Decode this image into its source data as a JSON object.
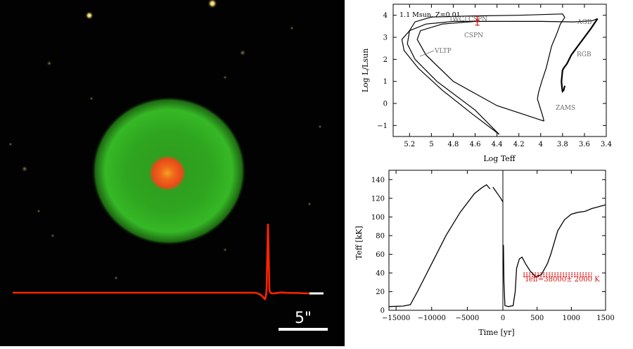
{
  "nebula_panel": {
    "scale_bar_label": "5\"",
    "colors": {
      "shell": "#37b824",
      "core": "#f0581e",
      "profile": "#ff2400",
      "profile_tail": "#ffffff"
    }
  },
  "chart_data": [
    {
      "type": "line",
      "panel": "hr-diagram",
      "title": "1.1 Msun, Z=0.01",
      "xlabel": "Log Teff",
      "ylabel": "Log L/Lsun",
      "xlim": [
        5.35,
        3.4
      ],
      "ylim": [
        -1.5,
        4.5
      ],
      "x_reversed": true,
      "x_ticks": [
        "5.2",
        "5",
        "4.8",
        "4.6",
        "4.4",
        "4.2",
        "4",
        "3.8",
        "3.6",
        "3.4"
      ],
      "y_ticks": [
        "-1",
        "0",
        "1",
        "2",
        "3",
        "4"
      ],
      "annotations": [
        "[WC] CSPN",
        "CSPN",
        "VLTP",
        "AGB",
        "RGB",
        "ZAMS"
      ],
      "error_point": {
        "x": 4.58,
        "y": 3.75,
        "xerr": 0.02,
        "yerr": 0.2,
        "color": "#dd1111"
      },
      "series": [
        {
          "points": [
            [
              3.78,
              0.8
            ],
            [
              3.79,
              0.6
            ],
            [
              3.8,
              0.55
            ],
            [
              3.805,
              0.7
            ],
            [
              3.81,
              1.0
            ],
            [
              3.8,
              1.5
            ],
            [
              3.79,
              1.6
            ],
            [
              3.76,
              1.8
            ],
            [
              3.72,
              2.2
            ],
            [
              3.66,
              2.6
            ],
            [
              3.6,
              3.0
            ],
            [
              3.54,
              3.4
            ],
            [
              3.5,
              3.7
            ],
            [
              3.48,
              3.85
            ]
          ]
        },
        {
          "points": [
            [
              3.48,
              3.85
            ],
            [
              3.53,
              3.75
            ],
            [
              3.7,
              3.7
            ],
            [
              4.0,
              3.72
            ],
            [
              4.4,
              3.72
            ],
            [
              4.8,
              3.72
            ],
            [
              5.05,
              3.6
            ],
            [
              5.2,
              3.3
            ],
            [
              5.27,
              2.9
            ],
            [
              5.25,
              2.4
            ],
            [
              5.12,
              1.6
            ],
            [
              4.9,
              0.6
            ],
            [
              4.62,
              -0.5
            ],
            [
              4.38,
              -1.4
            ]
          ]
        },
        {
          "points": [
            [
              4.38,
              -1.4
            ],
            [
              4.6,
              -0.3
            ],
            [
              4.95,
              1.0
            ],
            [
              5.15,
              2.0
            ],
            [
              5.22,
              2.7
            ],
            [
              5.2,
              3.3
            ],
            [
              5.15,
              3.7
            ],
            [
              5.0,
              3.92
            ],
            [
              4.6,
              3.97
            ],
            [
              4.2,
              4.0
            ],
            [
              3.8,
              4.06
            ],
            [
              3.78,
              3.9
            ],
            [
              3.82,
              3.6
            ],
            [
              3.85,
              3.2
            ],
            [
              3.9,
              2.6
            ],
            [
              3.93,
              2.0
            ],
            [
              3.95,
              1.6
            ],
            [
              3.97,
              1.3
            ],
            [
              3.99,
              1.0
            ],
            [
              4.02,
              0.5
            ],
            [
              4.03,
              0.2
            ],
            [
              3.98,
              -0.6
            ],
            [
              3.97,
              -0.8
            ]
          ]
        },
        {
          "points": [
            [
              3.97,
              -0.8
            ],
            [
              4.4,
              -0.1
            ],
            [
              4.8,
              1.0
            ],
            [
              5.05,
              2.2
            ],
            [
              5.13,
              2.9
            ],
            [
              5.1,
              3.3
            ],
            [
              4.9,
              3.6
            ],
            [
              4.6,
              3.72
            ]
          ]
        }
      ]
    },
    {
      "type": "line",
      "panel": "teff-time",
      "xlabel": "Time [yr]",
      "ylabel": "Teff [kK]",
      "ylim": [
        0,
        150
      ],
      "x_ticks": [
        "−15000",
        "−10000",
        "−5000",
        "0",
        "500",
        "1000",
        "1500"
      ],
      "y_ticks": [
        "0",
        "20",
        "40",
        "60",
        "80",
        "100",
        "120",
        "140"
      ],
      "annotation": "Teff=38000± 2000 K",
      "band": {
        "x": [
          300,
          1300
        ],
        "y": [
          36,
          40
        ],
        "color": "#dd1111"
      },
      "series": [
        {
          "segment": "before",
          "points": [
            [
              -16000,
              4
            ],
            [
              -14000,
              4.5
            ],
            [
              -13000,
              6
            ],
            [
              -12000,
              20
            ],
            [
              -10000,
              50
            ],
            [
              -8000,
              80
            ],
            [
              -6000,
              105
            ],
            [
              -4000,
              125
            ],
            [
              -3000,
              131
            ],
            [
              -2300,
              134.5
            ],
            [
              -1800,
              130
            ]
          ]
        },
        {
          "segment": "after",
          "points": [
            [
              -1400,
              132
            ],
            [
              -300,
              120
            ],
            [
              0,
              116
            ],
            [
              8,
              70
            ],
            [
              15,
              30
            ],
            [
              30,
              5
            ],
            [
              80,
              4
            ],
            [
              150,
              5
            ],
            [
              180,
              20
            ],
            [
              200,
              45
            ],
            [
              240,
              55
            ],
            [
              280,
              57
            ],
            [
              330,
              50
            ],
            [
              400,
              42
            ],
            [
              480,
              36
            ],
            [
              560,
              38
            ],
            [
              650,
              50
            ],
            [
              700,
              60
            ],
            [
              800,
              85
            ],
            [
              900,
              97
            ],
            [
              1000,
              103
            ],
            [
              1100,
              105
            ],
            [
              1200,
              106
            ],
            [
              1300,
              109
            ],
            [
              1400,
              111
            ],
            [
              1500,
              113
            ]
          ]
        }
      ]
    }
  ]
}
